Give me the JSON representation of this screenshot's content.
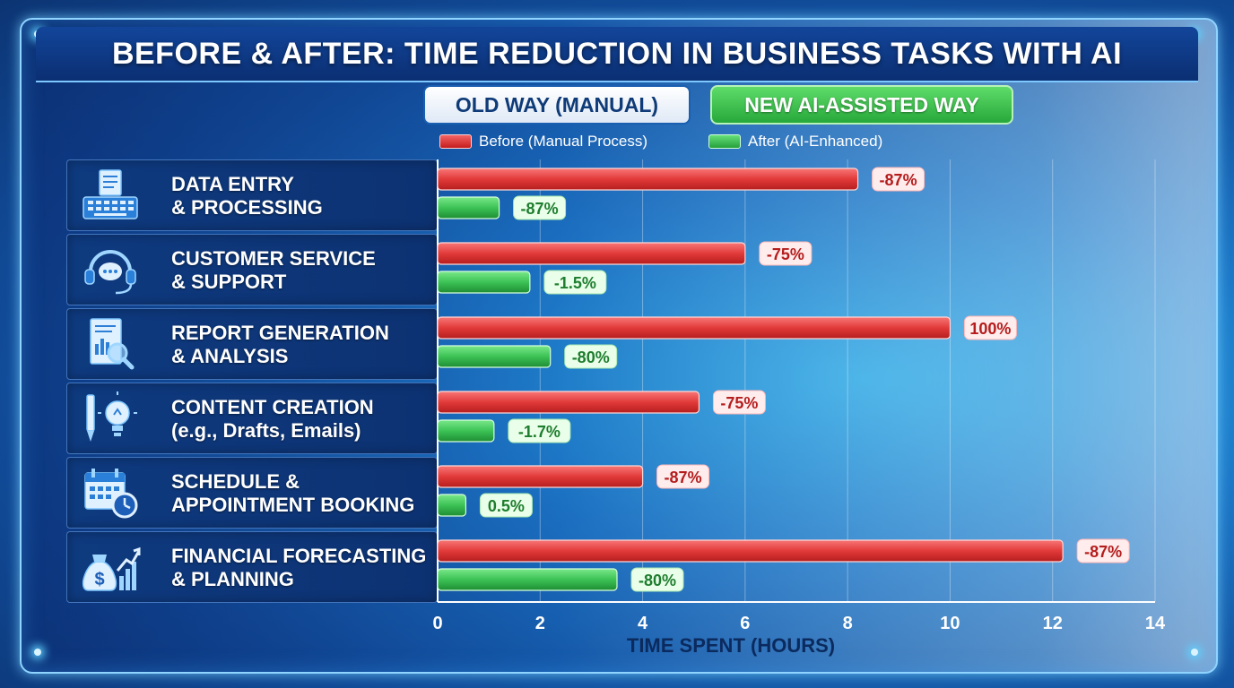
{
  "title": "BEFORE & AFTER: TIME REDUCTION IN BUSINESS TASKS WITH AI",
  "headers": {
    "old": "OLD WAY (MANUAL)",
    "new": "NEW AI-ASSISTED WAY"
  },
  "legend": {
    "before": "Before (Manual Process)",
    "after": "After (AI-Enhanced)"
  },
  "colors": {
    "before": "#e23a3a",
    "after": "#3cc255",
    "before_label_text": "#b51d1d",
    "after_label_text": "#1e7d2e"
  },
  "categories": [
    {
      "label": "DATA ENTRY\n& PROCESSING",
      "icon": "keyboard-document-icon"
    },
    {
      "label": "CUSTOMER SERVICE\n& SUPPORT",
      "icon": "headset-chat-icon"
    },
    {
      "label": "REPORT GENERATION\n& ANALYSIS",
      "icon": "report-magnifier-icon"
    },
    {
      "label": "CONTENT CREATION\n(e.g., Drafts, Emails)",
      "icon": "pen-lightbulb-icon"
    },
    {
      "label": "SCHEDULE &\nAPPOINTMENT BOOKING",
      "icon": "calendar-clock-icon"
    },
    {
      "label": "FINANCIAL FORECASTING\n& PLANNING",
      "icon": "moneybag-chart-icon"
    }
  ],
  "chart_data": {
    "type": "bar",
    "orientation": "horizontal",
    "categories": [
      "DATA ENTRY & PROCESSING",
      "CUSTOMER SERVICE & SUPPORT",
      "REPORT GENERATION & ANALYSIS",
      "CONTENT CREATION (e.g., Drafts, Emails)",
      "SCHEDULE & APPOINTMENT BOOKING",
      "FINANCIAL FORECASTING & PLANNING"
    ],
    "series": [
      {
        "name": "Before (Manual Process)",
        "values": [
          8.2,
          6.0,
          10.0,
          5.1,
          4.0,
          12.2
        ],
        "labels": [
          "-87%",
          "-75%",
          "100%",
          "-75%",
          "-87%",
          "-87%"
        ]
      },
      {
        "name": "After (AI-Enhanced)",
        "values": [
          1.2,
          1.8,
          2.2,
          1.1,
          0.55,
          3.5
        ],
        "labels": [
          "-87%",
          "-1.5%",
          "-80%",
          "-1.7%",
          "0.5%",
          "-80%"
        ]
      }
    ],
    "xlabel": "TIME SPENT (HOURS)",
    "xlim": [
      0,
      14
    ],
    "xticks": [
      0,
      2,
      4,
      6,
      8,
      10,
      12,
      14
    ],
    "grid": true,
    "legend_position": "top"
  }
}
